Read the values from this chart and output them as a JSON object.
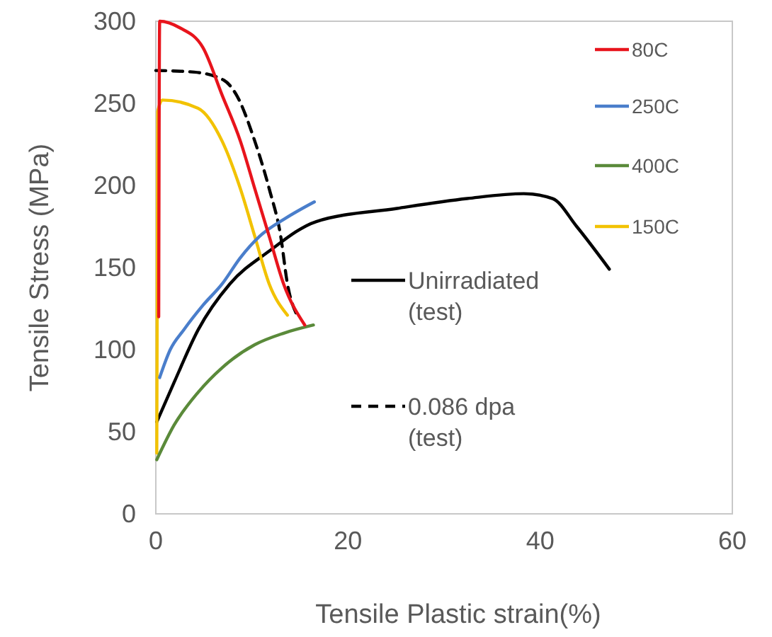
{
  "chart_data": {
    "type": "line",
    "xlabel": "Tensile Plastic strain(%)",
    "ylabel": "Tensile Stress (MPa)",
    "xlim": [
      0,
      60
    ],
    "ylim": [
      0,
      300
    ],
    "xticks": [
      0,
      20,
      40,
      60
    ],
    "yticks": [
      0,
      50,
      100,
      150,
      200,
      250,
      300
    ],
    "grid": false,
    "legend": "right",
    "marker": "none",
    "series": [
      {
        "name": "80C",
        "color": "#e8141c",
        "x": [
          0.3,
          0.4,
          2.5,
          4.9,
          6.9,
          8.8,
          10.3,
          11.8,
          13.3,
          15.5
        ],
        "values": [
          120,
          300,
          296,
          284,
          255,
          227,
          198,
          169,
          140,
          115
        ]
      },
      {
        "name": "250C",
        "color": "#4a7ecb",
        "x": [
          0.4,
          1.5,
          2.9,
          4.9,
          6.9,
          8.8,
          10.8,
          13.5,
          16.5
        ],
        "values": [
          83,
          100,
          112,
          127,
          140,
          156,
          169,
          180,
          190
        ]
      },
      {
        "name": "400C",
        "color": "#5a8a3a",
        "x": [
          0.1,
          1.9,
          4.4,
          6.9,
          10.3,
          13.3,
          16.4
        ],
        "values": [
          33,
          54,
          74,
          89,
          103,
          110,
          115
        ]
      },
      {
        "name": "150C",
        "color": "#f2c200",
        "x": [
          0.1,
          0.2,
          0.7,
          4.4,
          6.9,
          8.8,
          10.3,
          11.8,
          13.7
        ],
        "values": [
          37,
          245,
          252,
          247,
          227,
          198,
          169,
          140,
          121
        ]
      },
      {
        "name": "Unirradiated (test)",
        "color": "#000000",
        "x": [
          0.1,
          1.9,
          4.4,
          7.7,
          11.8,
          16.7,
          25.1,
          32.4,
          38.3,
          41.3,
          43.8,
          47.2
        ],
        "values": [
          56,
          80,
          112,
          140,
          160,
          178,
          186,
          192,
          195,
          192,
          175,
          149
        ]
      },
      {
        "name": "0.086 dpa (test)",
        "color": "#000000",
        "line_style": "dashed",
        "x": [
          0,
          4,
          7.1,
          8.4,
          10.3,
          11.8,
          13,
          13.7,
          14.7
        ],
        "values": [
          270,
          269,
          264,
          255,
          227,
          198,
          169,
          140,
          121
        ]
      }
    ]
  }
}
